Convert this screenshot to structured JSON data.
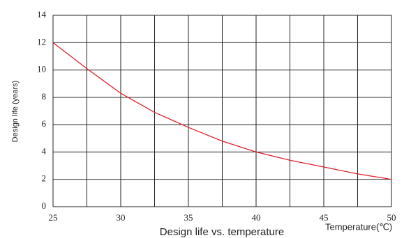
{
  "chart_data": {
    "type": "line",
    "title": "Design life vs. temperature",
    "x_label": "Temperature(℃)",
    "y_label": "Design life (years)",
    "x": [
      25,
      27.5,
      30,
      32.5,
      35,
      37.5,
      40,
      42.5,
      45,
      47.5,
      50
    ],
    "series": [
      {
        "color": "#e0202a",
        "values": [
          12,
          10.1,
          8.3,
          6.9,
          5.8,
          4.8,
          4.0,
          3.4,
          2.9,
          2.4,
          2.0
        ]
      }
    ],
    "xlim": [
      25,
      50
    ],
    "xticks": [
      25,
      30,
      35,
      40,
      45,
      50
    ],
    "ylim": [
      0,
      14
    ],
    "yticks": [
      0,
      2,
      4,
      6,
      8,
      10,
      12,
      14
    ],
    "grid": true,
    "minor_x_grid": true
  }
}
